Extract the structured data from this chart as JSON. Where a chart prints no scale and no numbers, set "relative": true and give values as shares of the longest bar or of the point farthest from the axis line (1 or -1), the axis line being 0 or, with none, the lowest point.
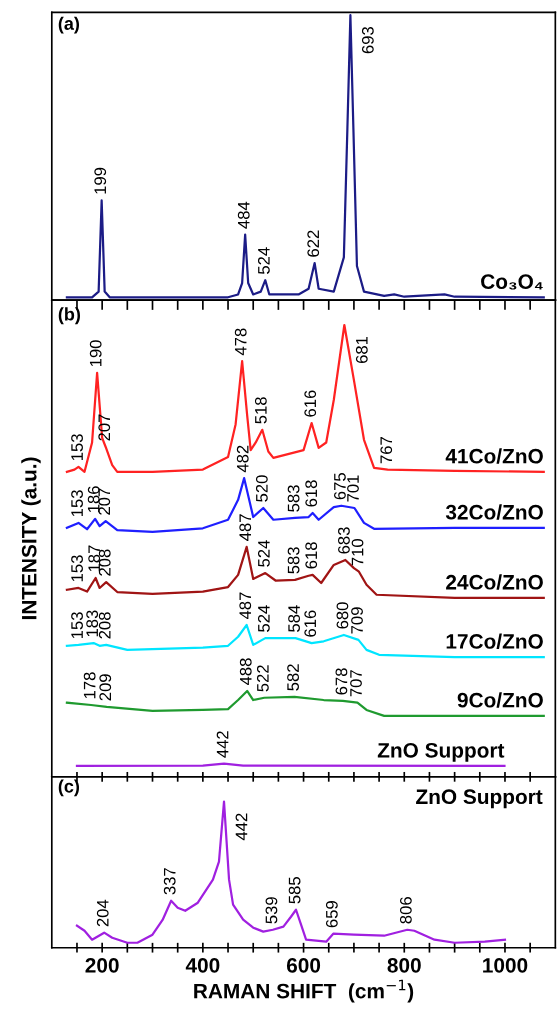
{
  "chart_data": [
    {
      "type": "line",
      "relative": true,
      "xlim": [
        100,
        1100
      ],
      "xticks": [
        {
          "value": 150,
          "label": null
        },
        {
          "value": 200,
          "label": null
        },
        {
          "value": 250,
          "label": null
        },
        {
          "value": 300,
          "label": null
        },
        {
          "value": 350,
          "label": null
        },
        {
          "value": 400,
          "label": null
        },
        {
          "value": 450,
          "label": null
        },
        {
          "value": 500,
          "label": null
        },
        {
          "value": 550,
          "label": null
        },
        {
          "value": 600,
          "label": null
        },
        {
          "value": 650,
          "label": null
        },
        {
          "value": 700,
          "label": null
        },
        {
          "value": 750,
          "label": null
        },
        {
          "value": 800,
          "label": null
        },
        {
          "value": 850,
          "label": null
        },
        {
          "value": 900,
          "label": null
        },
        {
          "value": 950,
          "label": null
        },
        {
          "value": 1000,
          "label": null
        },
        {
          "value": 1050,
          "label": null
        }
      ],
      "tick_labels": false,
      "grid": false,
      "legend": false,
      "series": [
        {
          "name": "Co₃O₄",
          "color": "#1c1c86",
          "x": [
            130,
            180,
            193,
            199,
            205,
            215,
            450,
            470,
            478,
            484,
            490,
            500,
            515,
            524,
            532,
            590,
            610,
            622,
            630,
            660,
            680,
            687,
            693,
            699,
            706,
            720,
            760,
            780,
            800,
            880,
            900,
            1077
          ],
          "values": [
            0.01,
            0.01,
            0.03,
            0.35,
            0.03,
            0.01,
            0.01,
            0.02,
            0.06,
            0.23,
            0.06,
            0.02,
            0.03,
            0.07,
            0.02,
            0.02,
            0.04,
            0.13,
            0.04,
            0.03,
            0.15,
            0.6,
            1.0,
            0.6,
            0.12,
            0.03,
            0.015,
            0.02,
            0.012,
            0.02,
            0.012,
            0.01
          ]
        }
      ],
      "annotations": [
        "(a)",
        {
          "text": "199",
          "x": 199,
          "y": 0.35
        },
        {
          "text": "484",
          "x": 484,
          "y": 0.23
        },
        {
          "text": "524",
          "x": 524,
          "y": 0.07
        },
        {
          "text": "622",
          "x": 622,
          "y": 0.13
        },
        {
          "text": "693",
          "x": 693,
          "y": 1.0
        }
      ]
    },
    {
      "type": "line",
      "relative": true,
      "xlim": [
        100,
        1100
      ],
      "xticks": [
        {
          "value": 150,
          "label": null
        },
        {
          "value": 200,
          "label": null
        },
        {
          "value": 250,
          "label": null
        },
        {
          "value": 300,
          "label": null
        },
        {
          "value": 350,
          "label": null
        },
        {
          "value": 400,
          "label": null
        },
        {
          "value": 450,
          "label": null
        },
        {
          "value": 500,
          "label": null
        },
        {
          "value": 550,
          "label": null
        },
        {
          "value": 600,
          "label": null
        },
        {
          "value": 650,
          "label": null
        },
        {
          "value": 700,
          "label": null
        },
        {
          "value": 750,
          "label": null
        },
        {
          "value": 800,
          "label": null
        },
        {
          "value": 850,
          "label": null
        },
        {
          "value": 900,
          "label": null
        },
        {
          "value": 950,
          "label": null
        },
        {
          "value": 1000,
          "label": null
        },
        {
          "value": 1050,
          "label": null
        }
      ],
      "tick_labels": false,
      "grid": false,
      "legend": false,
      "ylabel": "INTENSITY (a.u.)",
      "series": [
        {
          "name": "41Co/ZnO",
          "color": "#ff2222",
          "x": [
            130,
            145,
            153,
            165,
            180,
            190,
            200,
            207,
            220,
            230,
            300,
            400,
            450,
            465,
            478,
            488,
            495,
            505,
            518,
            530,
            540,
            600,
            616,
            630,
            645,
            660,
            681,
            700,
            720,
            740,
            767,
            900,
            1077
          ],
          "values": [
            0.675,
            0.68,
            0.686,
            0.675,
            0.74,
            0.894,
            0.75,
            0.73,
            0.69,
            0.675,
            0.675,
            0.68,
            0.708,
            0.78,
            0.92,
            0.8,
            0.723,
            0.74,
            0.768,
            0.72,
            0.706,
            0.723,
            0.783,
            0.728,
            0.74,
            0.834,
            1.0,
            0.878,
            0.746,
            0.684,
            0.68,
            0.677,
            0.675
          ]
        },
        {
          "name": "32Co/ZnO",
          "color": "#1f1fff",
          "x": [
            130,
            153,
            170,
            186,
            195,
            207,
            230,
            300,
            400,
            450,
            470,
            482,
            500,
            520,
            540,
            583,
            610,
            618,
            630,
            660,
            675,
            701,
            720,
            740,
            900,
            1077
          ],
          "values": [
            0.551,
            0.562,
            0.548,
            0.571,
            0.555,
            0.566,
            0.546,
            0.542,
            0.55,
            0.569,
            0.613,
            0.661,
            0.575,
            0.595,
            0.569,
            0.573,
            0.575,
            0.584,
            0.569,
            0.597,
            0.6,
            0.595,
            0.562,
            0.549,
            0.551,
            0.551
          ]
        },
        {
          "name": "24Co/ZnO",
          "color": "#a01414",
          "x": [
            130,
            153,
            170,
            187,
            195,
            208,
            230,
            300,
            400,
            450,
            470,
            487,
            500,
            524,
            545,
            583,
            610,
            618,
            635,
            660,
            683,
            700,
            710,
            725,
            745,
            900,
            1077
          ],
          "values": [
            0.414,
            0.418,
            0.41,
            0.44,
            0.418,
            0.431,
            0.409,
            0.405,
            0.41,
            0.42,
            0.447,
            0.509,
            0.438,
            0.451,
            0.434,
            0.436,
            0.445,
            0.447,
            0.429,
            0.469,
            0.48,
            0.462,
            0.454,
            0.425,
            0.403,
            0.396,
            0.396
          ]
        },
        {
          "name": "17Co/ZnO",
          "color": "#00e5ff",
          "x": [
            130,
            153,
            183,
            195,
            208,
            250,
            400,
            450,
            470,
            487,
            500,
            524,
            584,
            616,
            640,
            680,
            709,
            725,
            750,
            900,
            1077
          ],
          "values": [
            0.29,
            0.292,
            0.296,
            0.29,
            0.292,
            0.281,
            0.286,
            0.29,
            0.31,
            0.336,
            0.292,
            0.307,
            0.307,
            0.296,
            0.3,
            0.314,
            0.303,
            0.281,
            0.27,
            0.265,
            0.265
          ]
        },
        {
          "name": "9Co/ZnO",
          "color": "#1f9a2f",
          "x": [
            130,
            178,
            209,
            300,
            400,
            450,
            470,
            488,
            500,
            522,
            582,
            640,
            678,
            707,
            725,
            760,
            900,
            1077
          ],
          "values": [
            0.164,
            0.159,
            0.155,
            0.146,
            0.148,
            0.15,
            0.17,
            0.19,
            0.17,
            0.175,
            0.177,
            0.17,
            0.168,
            0.164,
            0.148,
            0.135,
            0.135,
            0.135
          ]
        },
        {
          "name": "ZnO Support",
          "color": "#a020e0",
          "x": [
            150,
            400,
            442,
            480,
            999
          ],
          "values": [
            0.024,
            0.025,
            0.029,
            0.025,
            0.024
          ]
        }
      ],
      "annotations": [
        "(b)",
        {
          "text": "153",
          "x": 153,
          "y": 0.686
        },
        {
          "text": "190",
          "x": 190,
          "y": 0.894
        },
        {
          "text": "207",
          "x": 207,
          "y": 0.73
        },
        {
          "text": "478",
          "x": 478,
          "y": 0.92
        },
        {
          "text": "518",
          "x": 518,
          "y": 0.768
        },
        {
          "text": "616",
          "x": 616,
          "y": 0.783
        },
        {
          "text": "681",
          "x": 681,
          "y": 1.0
        },
        {
          "text": "767",
          "x": 767,
          "y": 0.68
        },
        {
          "text": "153",
          "x": 153,
          "y": 0.562
        },
        {
          "text": "186",
          "x": 186,
          "y": 0.571
        },
        {
          "text": "207",
          "x": 207,
          "y": 0.566
        },
        {
          "text": "482",
          "x": 482,
          "y": 0.661
        },
        {
          "text": "520",
          "x": 520,
          "y": 0.595
        },
        {
          "text": "583",
          "x": 583,
          "y": 0.573
        },
        {
          "text": "618",
          "x": 618,
          "y": 0.584
        },
        {
          "text": "675",
          "x": 675,
          "y": 0.6
        },
        {
          "text": "701",
          "x": 701,
          "y": 0.595
        },
        {
          "text": "153",
          "x": 153,
          "y": 0.418
        },
        {
          "text": "187",
          "x": 187,
          "y": 0.44
        },
        {
          "text": "208",
          "x": 208,
          "y": 0.431
        },
        {
          "text": "487",
          "x": 487,
          "y": 0.509
        },
        {
          "text": "524",
          "x": 524,
          "y": 0.451
        },
        {
          "text": "583",
          "x": 583,
          "y": 0.436
        },
        {
          "text": "618",
          "x": 618,
          "y": 0.447
        },
        {
          "text": "683",
          "x": 683,
          "y": 0.48
        },
        {
          "text": "710",
          "x": 710,
          "y": 0.454
        },
        {
          "text": "153",
          "x": 153,
          "y": 0.292
        },
        {
          "text": "183",
          "x": 183,
          "y": 0.296
        },
        {
          "text": "208",
          "x": 208,
          "y": 0.292
        },
        {
          "text": "487",
          "x": 487,
          "y": 0.336
        },
        {
          "text": "524",
          "x": 524,
          "y": 0.307
        },
        {
          "text": "584",
          "x": 584,
          "y": 0.307
        },
        {
          "text": "616",
          "x": 616,
          "y": 0.296
        },
        {
          "text": "680",
          "x": 680,
          "y": 0.314
        },
        {
          "text": "709",
          "x": 709,
          "y": 0.303
        },
        {
          "text": "178",
          "x": 178,
          "y": 0.159
        },
        {
          "text": "209",
          "x": 209,
          "y": 0.155
        },
        {
          "text": "488",
          "x": 488,
          "y": 0.19
        },
        {
          "text": "522",
          "x": 522,
          "y": 0.175
        },
        {
          "text": "582",
          "x": 582,
          "y": 0.177
        },
        {
          "text": "678",
          "x": 678,
          "y": 0.168
        },
        {
          "text": "707",
          "x": 707,
          "y": 0.164
        },
        {
          "text": "442",
          "x": 442,
          "y": 0.029
        }
      ]
    },
    {
      "type": "line",
      "relative": true,
      "xlim": [
        100,
        1100
      ],
      "xticks": [
        {
          "value": 150,
          "label": null
        },
        200,
        {
          "value": 250,
          "label": null
        },
        {
          "value": 300,
          "label": null
        },
        {
          "value": 350,
          "label": null
        },
        400,
        {
          "value": 450,
          "label": null
        },
        {
          "value": 500,
          "label": null
        },
        {
          "value": 550,
          "label": null
        },
        600,
        {
          "value": 650,
          "label": null
        },
        {
          "value": 700,
          "label": null
        },
        {
          "value": 750,
          "label": null
        },
        800,
        {
          "value": 850,
          "label": null
        },
        {
          "value": 900,
          "label": null
        },
        {
          "value": 950,
          "label": null
        },
        1000,
        {
          "value": 1050,
          "label": null
        }
      ],
      "tick_labels": "x",
      "grid": false,
      "legend": false,
      "xlabel": "RAMAN SHIFT  (cm$^{−1}$)",
      "series": [
        {
          "name": "ZnO Support",
          "color": "#a020e0",
          "x": [
            150,
            165,
            180,
            204,
            220,
            250,
            270,
            300,
            320,
            337,
            350,
            365,
            390,
            420,
            432,
            442,
            452,
            460,
            480,
            500,
            520,
            539,
            560,
            575,
            585,
            595,
            605,
            645,
            659,
            700,
            760,
            806,
            820,
            860,
            900,
            960,
            1000
          ],
          "values": [
            0.151,
            0.116,
            0.055,
            0.103,
            0.068,
            0.034,
            0.034,
            0.089,
            0.19,
            0.322,
            0.274,
            0.253,
            0.308,
            0.466,
            0.589,
            1.0,
            0.466,
            0.295,
            0.192,
            0.137,
            0.11,
            0.123,
            0.144,
            0.212,
            0.26,
            0.158,
            0.055,
            0.041,
            0.096,
            0.089,
            0.082,
            0.123,
            0.116,
            0.055,
            0.034,
            0.041,
            0.055
          ]
        }
      ],
      "annotations": [
        "(c)",
        {
          "text": "204",
          "x": 204,
          "y": 0.103
        },
        {
          "text": "337",
          "x": 337,
          "y": 0.322
        },
        {
          "text": "442",
          "x": 442,
          "y": 1.0
        },
        {
          "text": "539",
          "x": 539,
          "y": 0.123
        },
        {
          "text": "585",
          "x": 585,
          "y": 0.26
        },
        {
          "text": "659",
          "x": 659,
          "y": 0.096
        },
        {
          "text": "806",
          "x": 806,
          "y": 0.123
        }
      ]
    }
  ]
}
